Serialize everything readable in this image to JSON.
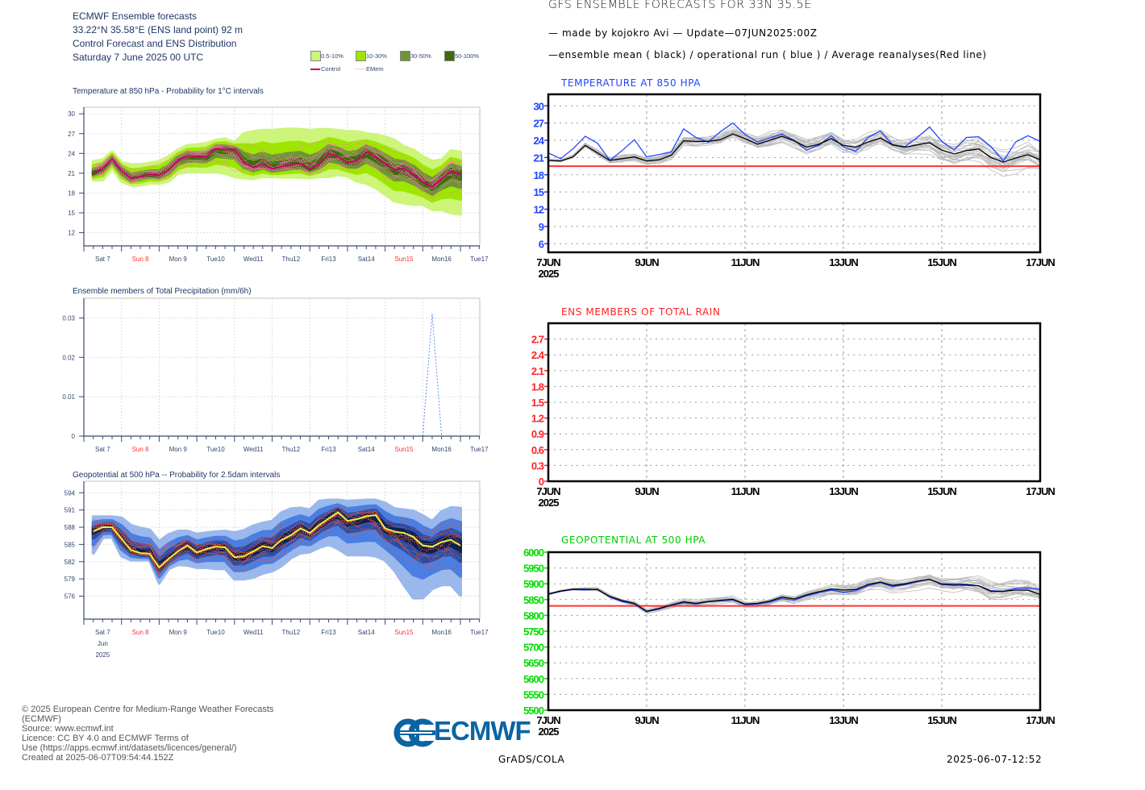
{
  "ecmwf": {
    "header": [
      "ECMWF Ensemble forecasts",
      "33.22°N 35.58°E (ENS land point) 92 m",
      "Control Forecast and ENS Distribution",
      "Saturday 7 June 2025 00 UTC"
    ],
    "legend": {
      "items": [
        {
          "label": "0.5-10%",
          "color": "#ccf57a"
        },
        {
          "label": "10-30%",
          "color": "#9ee600"
        },
        {
          "label": "30-50%",
          "color": "#6f9436"
        },
        {
          "label": "50-100%",
          "color": "#3f6a0c"
        }
      ],
      "control_label": "Control",
      "control_color": "#cc0066",
      "emem_label": "EMem",
      "emem_color": "#ff88cc"
    },
    "footer": [
      "© 2025 European Centre for Medium-Range Weather Forecasts",
      "(ECMWF)",
      "Source: www.ecmwf.int",
      "Licence: CC BY 4.0 and ECMWF Terms of",
      "Use (https://apps.ecmwf.int/datasets/licences/general/)",
      "Created at 2025-06-07T09:54:44.152Z"
    ],
    "logo_text": "ECMWF"
  },
  "gfs": {
    "title": "GFS ENSEMBLE FORECASTS FOR 33N 35.5E",
    "line1": "— made by kojokro Avi — Update—07JUN2025:00Z",
    "line2": "—ensemble mean ( black) / operational run ( blue )  / Average reanalyses(Red line)",
    "footer_left": "GrADS/COLA",
    "footer_right": "2025-06-07-12:52"
  },
  "chart_data": [
    {
      "id": "ec-t850",
      "type": "area",
      "title": "Temperature at 850 hPa - Probability for 1°C intervals",
      "x_start": "2025-06-07 06 UTC",
      "x_step_hours": 6,
      "x_labels": [
        "Sat 7",
        "Sun 8",
        "Mon 9",
        "Tue10",
        "Wed11",
        "Thu12",
        "Fri13",
        "Sat14",
        "Sun15",
        "Mon16",
        "Tue17"
      ],
      "weekend_labels": [
        "Sun 8",
        "Sun15"
      ],
      "weekend_color": "#ff3333",
      "y_ticks": [
        30,
        27,
        24,
        21,
        18,
        15,
        12
      ],
      "ylim": [
        10,
        31
      ],
      "grid": true,
      "control": [
        21.0,
        21.7,
        23.2,
        21.4,
        20.2,
        20.5,
        20.8,
        20.7,
        21.5,
        23.0,
        23.6,
        23.6,
        23.5,
        24.7,
        24.6,
        24.6,
        22.6,
        21.9,
        22.4,
        21.7,
        22.0,
        22.3,
        22.5,
        21.7,
        22.4,
        24.0,
        23.5,
        22.6,
        22.9,
        24.2,
        23.5,
        22.5,
        21.5,
        21.7,
        20.9,
        19.7,
        18.9,
        20.2,
        21.3,
        20.8
      ],
      "envelope_high": [
        22.8,
        23.0,
        24.2,
        22.6,
        22.3,
        22.3,
        22.5,
        22.8,
        23.5,
        24.5,
        25.2,
        25.3,
        25.5,
        26.0,
        26.2,
        25.6,
        27.0,
        27.3,
        27.5,
        27.5,
        27.6,
        27.7,
        27.6,
        27.5,
        27.6,
        27.6,
        27.5,
        27.3,
        27.3,
        27.0,
        26.8,
        26.5,
        26.0,
        25.0,
        24.5,
        23.5,
        22.8,
        23.0,
        24.4,
        24.2
      ],
      "envelope_low": [
        20.0,
        20.0,
        21.8,
        19.8,
        19.2,
        19.2,
        19.5,
        19.5,
        19.8,
        21.0,
        21.2,
        21.2,
        21.2,
        21.2,
        21.0,
        20.5,
        20.3,
        20.2,
        20.5,
        20.5,
        20.4,
        20.4,
        20.4,
        20.3,
        20.5,
        20.5,
        20.8,
        20.6,
        19.8,
        19.5,
        18.8,
        17.8,
        16.8,
        16.5,
        16.3,
        16.3,
        15.5,
        15.5,
        15.0,
        14.8
      ],
      "band_colors": [
        "#ccf57a",
        "#9ee600",
        "#6f9436",
        "#3f6a0c"
      ],
      "control_color": "#cc0066",
      "member_color": "#ff77bb"
    },
    {
      "id": "ec-precip",
      "type": "line",
      "title": "Ensemble members of Total Precipitation (mm/6h)",
      "x_labels": [
        "Sat 7",
        "Sun 8",
        "Mon 9",
        "Tue10",
        "Wed11",
        "Thu12",
        "Fri13",
        "Sat14",
        "Sun15",
        "Mon16",
        "Tue17"
      ],
      "weekend_labels": [
        "Sun 8",
        "Sun15"
      ],
      "weekend_color": "#ff3333",
      "y_ticks": [
        0.03,
        0.02,
        0.01,
        0
      ],
      "ylim": [
        0,
        0.035
      ],
      "grid": true,
      "member_spike": {
        "x": [
          "2025-06-16 00 UTC",
          "2025-06-16 06 UTC",
          "2025-06-16 12 UTC"
        ],
        "y": [
          0,
          0.031,
          0
        ]
      },
      "member_color": "#5b8ee8"
    },
    {
      "id": "ec-z500",
      "type": "area",
      "title": "Geopotential at 500 hPa -- Probability for 2.5dam intervals",
      "x_start": "2025-06-07 06 UTC",
      "x_step_hours": 6,
      "x_labels": [
        "Sat 7",
        "Sun 8",
        "Mon 9",
        "Tue10",
        "Wed11",
        "Thu12",
        "Fri13",
        "Sat14",
        "Sun15",
        "Mon16",
        "Tue17"
      ],
      "x_sublabels": [
        "Jun",
        "2025"
      ],
      "weekend_labels": [
        "Sun 8",
        "Sun15"
      ],
      "weekend_color": "#ff3333",
      "y_ticks": [
        594,
        591,
        588,
        585,
        582,
        579,
        576
      ],
      "ylim": [
        572,
        596
      ],
      "grid": true,
      "control": [
        587.3,
        588.0,
        588.0,
        586.0,
        584.0,
        583.5,
        583.4,
        581.0,
        582.5,
        583.8,
        584.8,
        583.6,
        584.2,
        584.6,
        584.5,
        582.8,
        582.9,
        583.8,
        584.7,
        584.4,
        585.8,
        586.6,
        587.8,
        587.0,
        588.4,
        589.5,
        590.6,
        589.1,
        589.4,
        589.9,
        590.1,
        587.8,
        587.2,
        587.0,
        586.3,
        584.8,
        584.6,
        585.4,
        585.8,
        584.8
      ],
      "envelope_high": [
        589.8,
        589.8,
        589.8,
        589.6,
        588.3,
        587.8,
        587.5,
        585.5,
        586.7,
        587.3,
        587.3,
        586.8,
        587.0,
        587.2,
        587.3,
        587.0,
        587.4,
        588.2,
        588.7,
        589.0,
        590.5,
        591.2,
        591.3,
        591.0,
        592.5,
        592.7,
        592.7,
        592.5,
        592.6,
        592.7,
        592.7,
        592.2,
        591.2,
        591.0,
        590.8,
        590.0,
        589.0,
        590.7,
        591.4,
        591.3
      ],
      "envelope_low": [
        583.5,
        586.2,
        586.3,
        583.0,
        582.3,
        582.3,
        582.3,
        578.3,
        580.8,
        581.5,
        581.4,
        581.0,
        581.0,
        580.8,
        580.8,
        579.0,
        579.0,
        579.3,
        580.0,
        580.4,
        581.3,
        582.7,
        583.5,
        583.7,
        584.5,
        585.0,
        584.3,
        583.2,
        583.2,
        583.2,
        583.0,
        582.3,
        580.5,
        578.0,
        575.7,
        575.7,
        577.3,
        578.0,
        578.0,
        576.2
      ],
      "band_colors": [
        "#9ab8ec",
        "#4a7ee0",
        "#274ea8",
        "#0f1f4f"
      ],
      "control_color": "#e8f040",
      "member_color": "#ff5533"
    },
    {
      "id": "gfs-t850",
      "type": "line",
      "title": "TEMPERATURE AT 850 HPA",
      "title_color": "#2244ff",
      "tick_color": "#2244ff",
      "x_start": "2025-06-07 00 UTC",
      "x_step_hours": 6,
      "x_labels": [
        "7JUN",
        "9JUN",
        "11JUN",
        "13JUN",
        "15JUN",
        "17JUN"
      ],
      "x_year": "2025",
      "y_ticks": [
        30,
        27,
        24,
        21,
        18,
        15,
        12,
        9,
        6
      ],
      "ylim": [
        4.5,
        32
      ],
      "grid": true,
      "reanalysis_avg": 19.5,
      "series": [
        {
          "name": "ensemble mean",
          "color": "#000000",
          "values": [
            20.5,
            20.4,
            21.1,
            23.1,
            21.8,
            20.5,
            20.8,
            21.1,
            20.4,
            20.6,
            21.4,
            23.9,
            23.8,
            23.8,
            24.1,
            25.1,
            24.3,
            23.3,
            24.0,
            24.7,
            23.9,
            22.8,
            23.3,
            24.3,
            23.1,
            22.8,
            23.7,
            24.4,
            23.2,
            22.8,
            23.2,
            23.6,
            22.3,
            21.6,
            22.2,
            22.5,
            21.0,
            20.2,
            20.9,
            21.5,
            20.6
          ]
        },
        {
          "name": "operational run",
          "color": "#2244ff",
          "values": [
            21.8,
            20.8,
            22.5,
            24.7,
            23.5,
            20.5,
            22.2,
            24.1,
            21.1,
            21.5,
            22.0,
            26.0,
            24.5,
            23.7,
            25.5,
            27.0,
            25.0,
            23.7,
            24.4,
            25.1,
            24.0,
            22.3,
            23.1,
            24.8,
            22.8,
            22.1,
            24.5,
            25.6,
            23.2,
            22.9,
            24.5,
            26.3,
            23.8,
            22.3,
            24.5,
            24.6,
            22.9,
            20.4,
            23.7,
            24.8,
            23.8
          ]
        }
      ],
      "member_color": "#bbbbbb",
      "reanalysis_color": "#ff3333"
    },
    {
      "id": "gfs-rain",
      "type": "line",
      "title": "ENS MEMBERS OF TOTAL RAIN",
      "title_color": "#ff2222",
      "tick_color": "#ff2222",
      "x_labels": [
        "7JUN",
        "9JUN",
        "11JUN",
        "13JUN",
        "15JUN",
        "17JUN"
      ],
      "x_year": "2025",
      "y_ticks": [
        2.7,
        2.4,
        2.1,
        1.8,
        1.5,
        1.2,
        0.9,
        0.6,
        0.3,
        0
      ],
      "ylim": [
        0,
        3.0
      ],
      "grid": true
    },
    {
      "id": "gfs-z500",
      "type": "line",
      "title": "GEOPOTENTIAL AT 500 HPA",
      "title_color": "#00cc00",
      "tick_color": "#00dd00",
      "x_start": "2025-06-07 00 UTC",
      "x_step_hours": 6,
      "x_labels": [
        "7JUN",
        "9JUN",
        "11JUN",
        "13JUN",
        "15JUN",
        "17JUN"
      ],
      "x_year": "2025",
      "y_ticks": [
        6000,
        5950,
        5900,
        5850,
        5800,
        5750,
        5700,
        5650,
        5600,
        5550,
        5500
      ],
      "ylim": [
        5500,
        6000
      ],
      "grid": true,
      "reanalysis_avg": 5830,
      "series": [
        {
          "name": "ensemble mean",
          "color": "#000000",
          "values": [
            5868,
            5877,
            5883,
            5883,
            5882,
            5860,
            5847,
            5838,
            5813,
            5822,
            5833,
            5843,
            5838,
            5844,
            5848,
            5851,
            5836,
            5838,
            5845,
            5858,
            5852,
            5865,
            5875,
            5883,
            5880,
            5882,
            5898,
            5905,
            5895,
            5900,
            5908,
            5914,
            5898,
            5896,
            5896,
            5894,
            5876,
            5876,
            5880,
            5880,
            5866
          ]
        },
        {
          "name": "operational run",
          "color": "#2244ff",
          "values": [
            5866,
            5876,
            5882,
            5880,
            5883,
            5858,
            5844,
            5836,
            5811,
            5820,
            5832,
            5840,
            5836,
            5843,
            5846,
            5849,
            5834,
            5836,
            5842,
            5853,
            5848,
            5862,
            5872,
            5880,
            5873,
            5878,
            5894,
            5904,
            5891,
            5897,
            5906,
            5914,
            5900,
            5900,
            5899,
            5893,
            5878,
            5876,
            5886,
            5887,
            5882
          ]
        }
      ],
      "member_color": "#bbbbbb",
      "reanalysis_color": "#ff3333"
    }
  ]
}
